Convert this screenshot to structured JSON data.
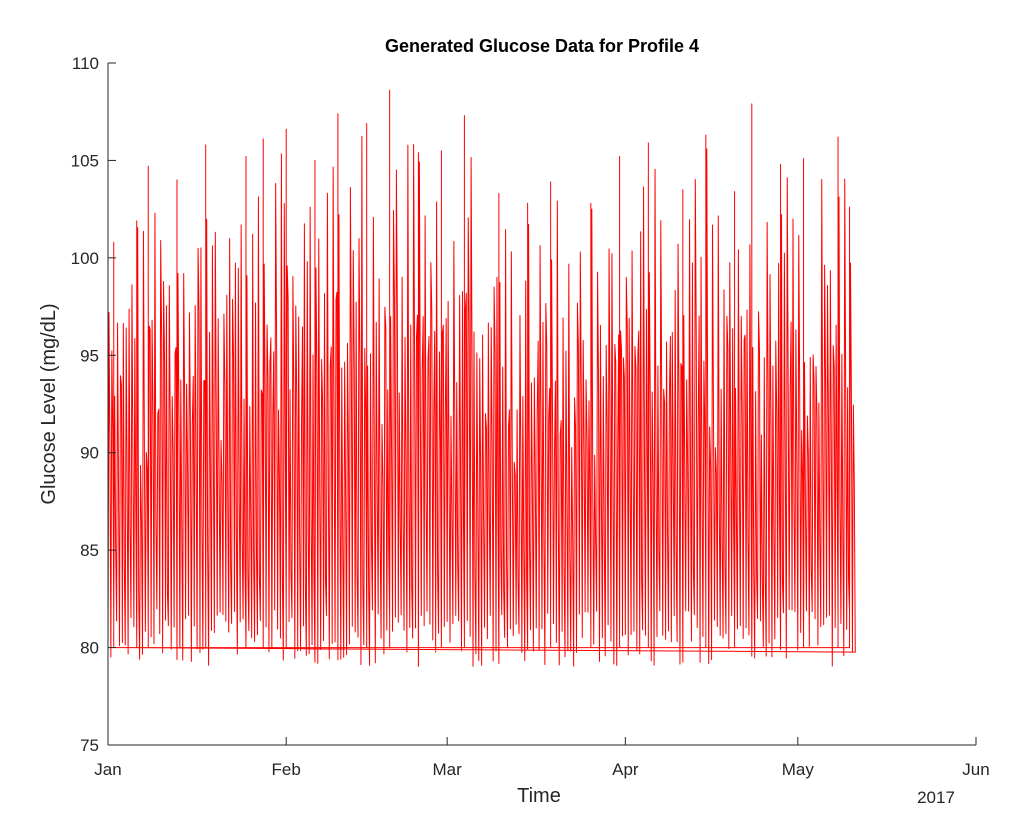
{
  "chart_data": {
    "type": "line",
    "title": "Generated Glucose Data for Profile 4",
    "xlabel": "Time",
    "ylabel": "Glucose Level (mg/dL)",
    "x_tick_labels": [
      "Jan",
      "Feb",
      "Mar",
      "Apr",
      "May",
      "Jun"
    ],
    "x_tick_dates": [
      "2017-01-01",
      "2017-02-01",
      "2017-03-01",
      "2017-04-01",
      "2017-05-01",
      "2017-06-01"
    ],
    "x_secondary_label": "2017",
    "xlim": [
      "2017-01-01",
      "2017-06-01"
    ],
    "ylim": [
      75,
      110
    ],
    "y_ticks": [
      75,
      80,
      85,
      90,
      95,
      100,
      105,
      110
    ],
    "grid": false,
    "series": [
      {
        "color": "#ff0000",
        "x_start": "2017-01-01",
        "x_end": "2017-05-11",
        "min": 79,
        "max": 108.6,
        "peaks": [
          {
            "x": "2017-01-02",
            "y": 100.8
          },
          {
            "x": "2017-01-06",
            "y": 101.9
          },
          {
            "x": "2017-01-08",
            "y": 104.7
          },
          {
            "x": "2017-01-13",
            "y": 104.0
          },
          {
            "x": "2017-01-18",
            "y": 105.8
          },
          {
            "x": "2017-01-25",
            "y": 105.2
          },
          {
            "x": "2017-01-28",
            "y": 106.1
          },
          {
            "x": "2017-02-01",
            "y": 106.6
          },
          {
            "x": "2017-02-06",
            "y": 105.0
          },
          {
            "x": "2017-02-10",
            "y": 107.4
          },
          {
            "x": "2017-02-15",
            "y": 106.9
          },
          {
            "x": "2017-02-19",
            "y": 108.6
          },
          {
            "x": "2017-02-24",
            "y": 105.4
          },
          {
            "x": "2017-02-28",
            "y": 105.5
          },
          {
            "x": "2017-03-04",
            "y": 107.3
          },
          {
            "x": "2017-03-10",
            "y": 103.3
          },
          {
            "x": "2017-03-15",
            "y": 102.8
          },
          {
            "x": "2017-03-19",
            "y": 103.9
          },
          {
            "x": "2017-03-26",
            "y": 102.8
          },
          {
            "x": "2017-03-31",
            "y": 105.2
          },
          {
            "x": "2017-04-05",
            "y": 105.9
          },
          {
            "x": "2017-04-11",
            "y": 103.5
          },
          {
            "x": "2017-04-15",
            "y": 106.3
          },
          {
            "x": "2017-04-20",
            "y": 103.4
          },
          {
            "x": "2017-04-23",
            "y": 107.9
          },
          {
            "x": "2017-04-28",
            "y": 104.8
          },
          {
            "x": "2017-05-02",
            "y": 105.1
          },
          {
            "x": "2017-05-08",
            "y": 106.2
          },
          {
            "x": "2017-05-10",
            "y": 102.6
          }
        ]
      }
    ]
  }
}
